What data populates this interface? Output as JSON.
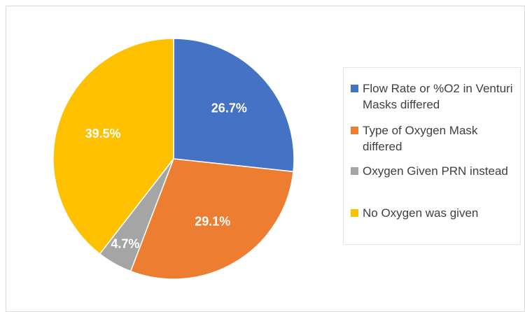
{
  "chart_data": {
    "type": "pie",
    "categories": [
      "Flow Rate or %O2 in Venturi Masks differed",
      "Type of Oxygen Mask differed",
      "Oxygen Given PRN instead",
      "No Oxygen was given"
    ],
    "values": [
      26.7,
      29.1,
      4.7,
      39.5
    ],
    "value_labels": [
      "26.7%",
      "29.1%",
      "4.7%",
      "39.5%"
    ],
    "colors": [
      "#4472c4",
      "#ed7d31",
      "#a5a5a5",
      "#ffc000"
    ],
    "legend": "right"
  }
}
